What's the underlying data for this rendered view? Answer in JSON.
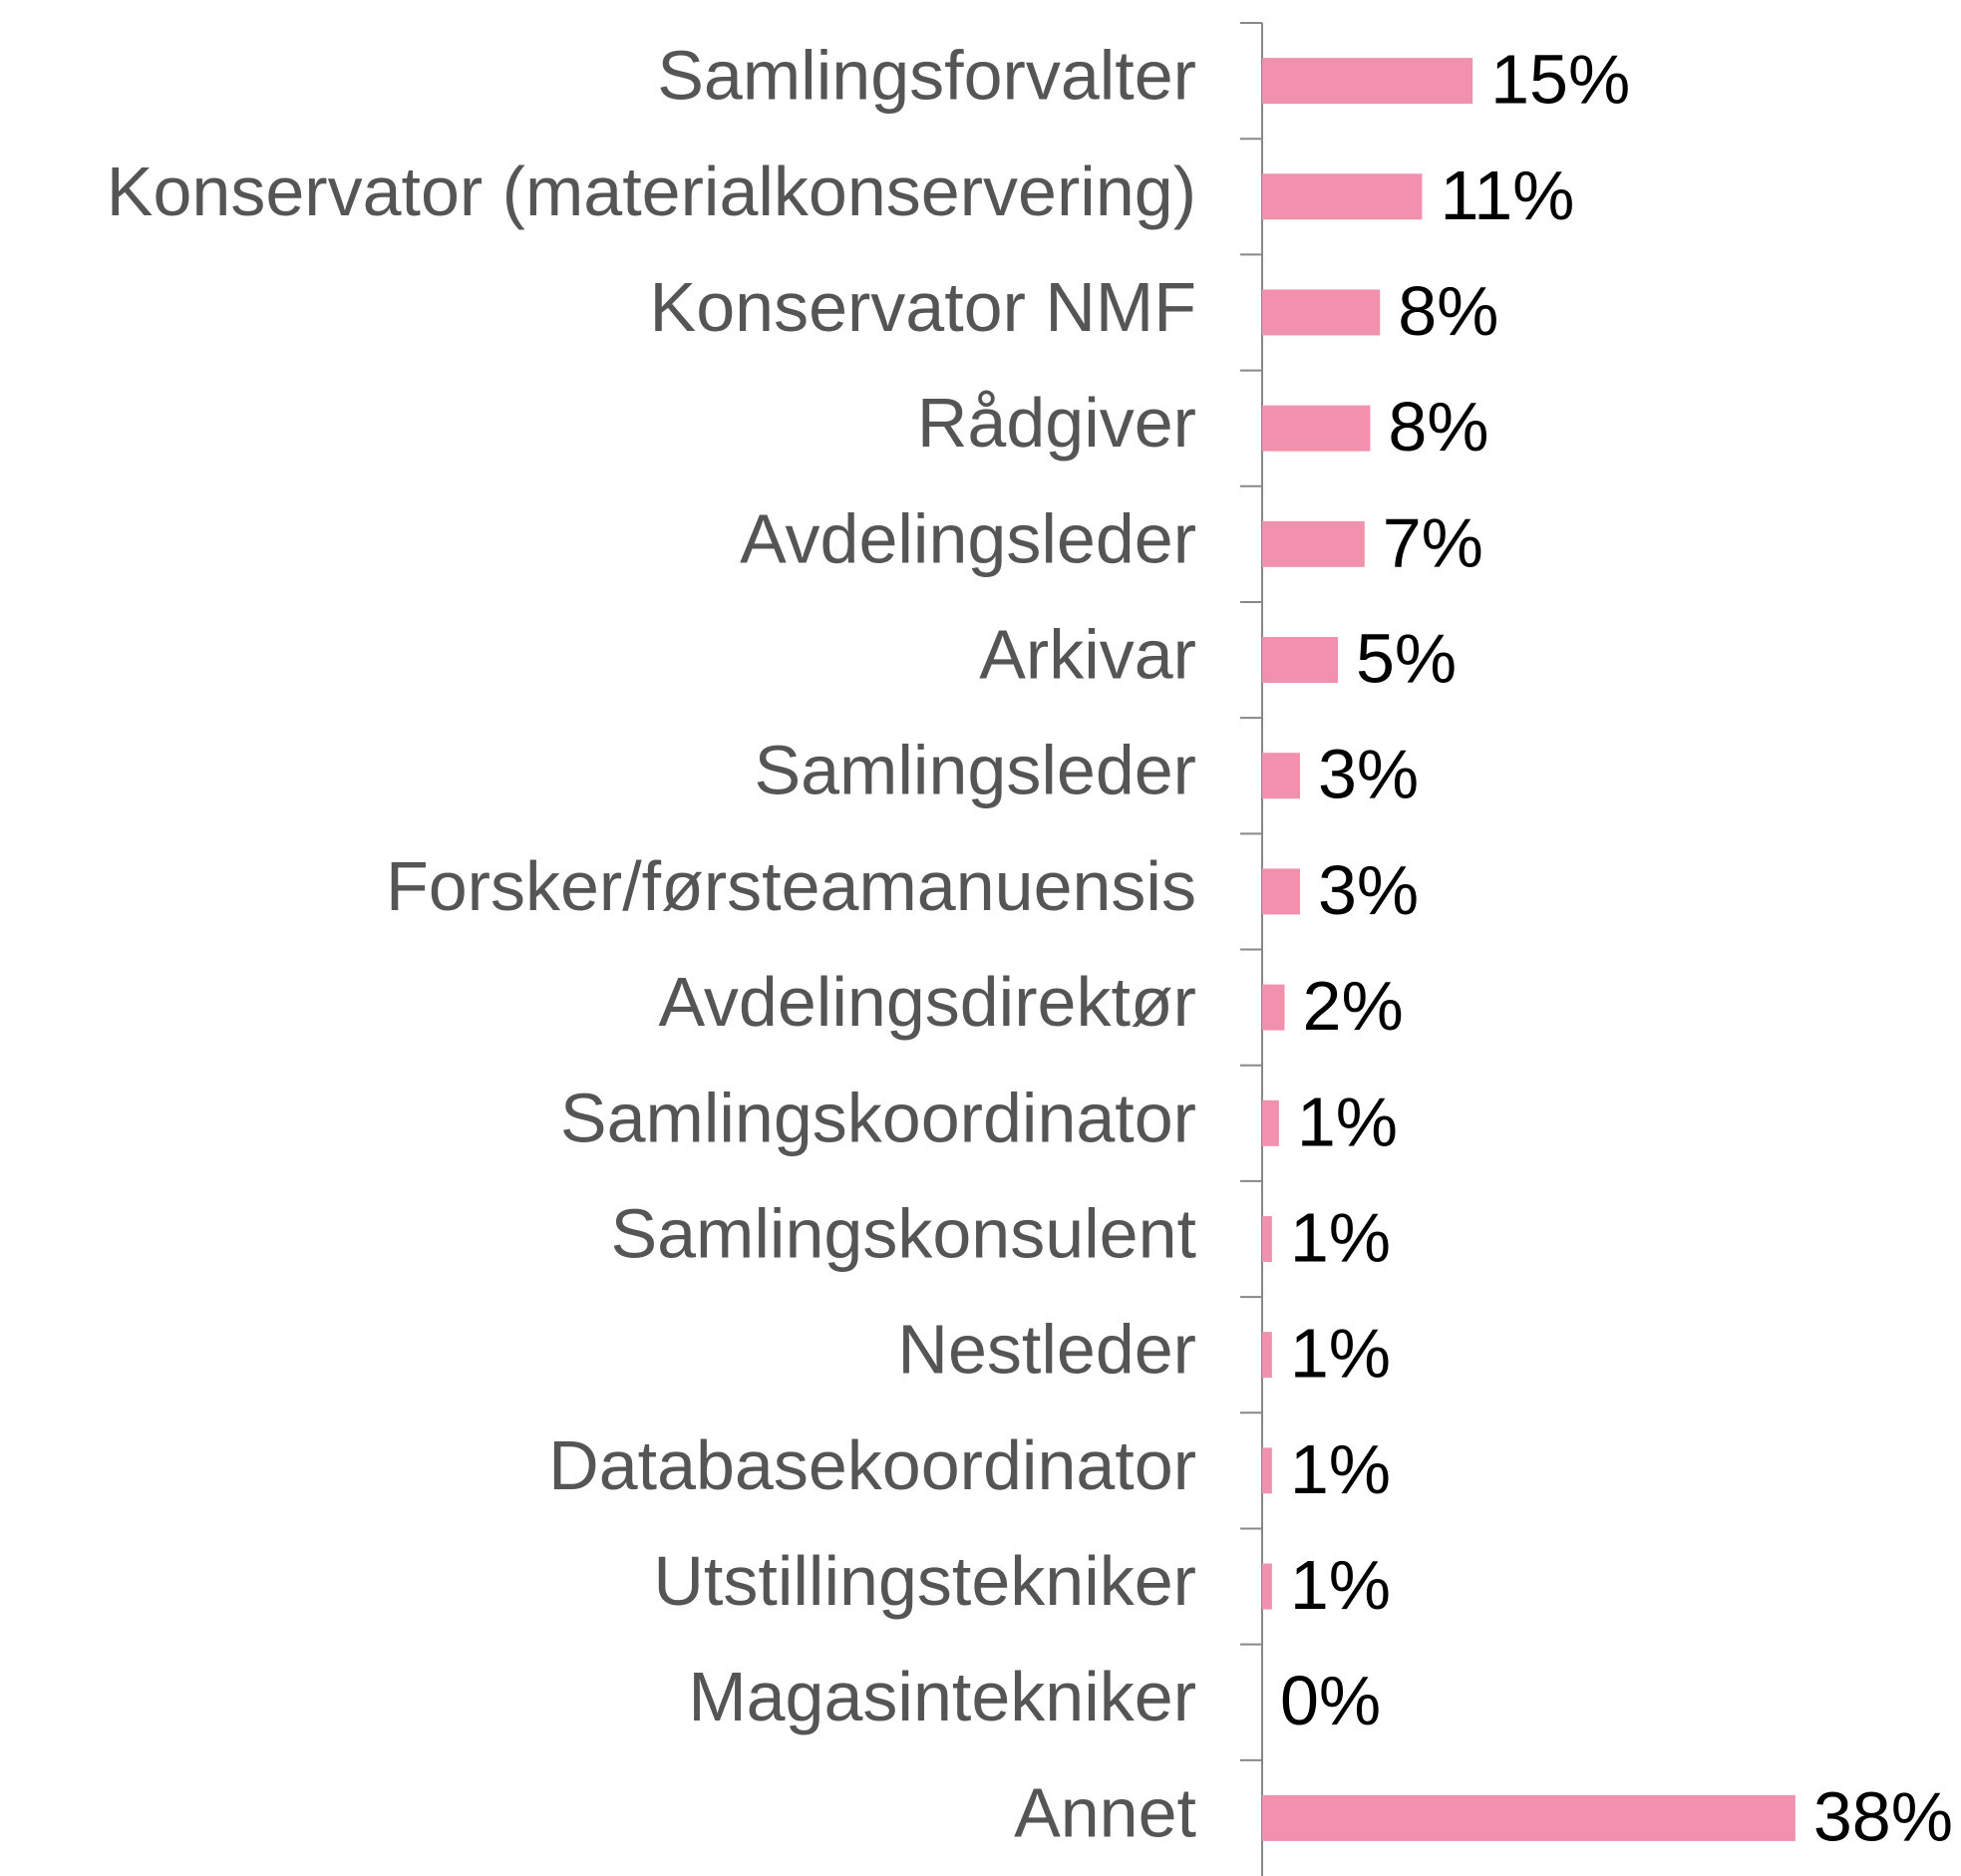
{
  "chart_data": {
    "type": "barh",
    "categories": [
      "Samlingsforvalter",
      "Konservator (materialkonservering)",
      "Konservator NMF",
      "Rådgiver",
      "Avdelingsleder",
      "Arkivar",
      "Samlingsleder",
      "Forsker/førsteamanuensis",
      "Avdelingsdirektør",
      "Samlingskoordinator",
      "Samlingskonsulent",
      "Nestleder",
      "Databasekoordinator",
      "Utstillingstekniker",
      "Magasintekniker",
      "Annet"
    ],
    "values": [
      15,
      11.4,
      8.4,
      7.7,
      7.3,
      5.4,
      2.7,
      2.7,
      1.6,
      1.2,
      0.7,
      0.7,
      0.7,
      0.7,
      0,
      38
    ],
    "value_labels": [
      "15%",
      "11%",
      "8%",
      "8%",
      "7%",
      "5%",
      "3%",
      "3%",
      "2%",
      "1%",
      "1%",
      "1%",
      "1%",
      "1%",
      "0%",
      "38%"
    ],
    "color": "#f191ae",
    "xlim": [
      0,
      40
    ]
  }
}
